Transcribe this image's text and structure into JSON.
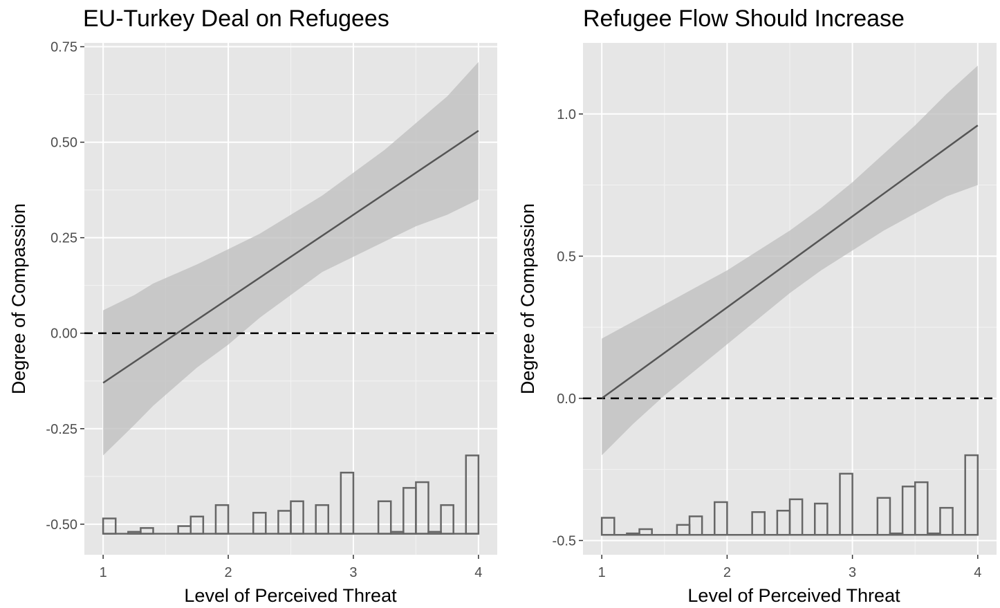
{
  "chart_data": [
    {
      "type": "line",
      "title": "EU-Turkey Deal on Refugees",
      "xlabel": "Level of Perceived Threat",
      "ylabel": "Degree of Compassion",
      "xlim": [
        0.85,
        4.15
      ],
      "ylim": [
        -0.58,
        0.76
      ],
      "x_ticks": [
        1,
        2,
        3,
        4
      ],
      "x_tick_labels": [
        "1",
        "2",
        "3",
        "4"
      ],
      "y_ticks": [
        -0.5,
        -0.25,
        0,
        0.25,
        0.5,
        0.75
      ],
      "y_tick_labels": [
        "-0.50",
        "-0.25",
        "0.00",
        "0.25",
        "0.50",
        "0.75"
      ],
      "reference_line": 0,
      "grid": true,
      "effect": {
        "x": [
          1,
          4
        ],
        "y": [
          -0.13,
          0.53
        ]
      },
      "confidence_band": {
        "x": [
          1,
          1.25,
          1.4,
          1.75,
          2,
          2.25,
          2.5,
          2.75,
          3,
          3.25,
          3.5,
          3.75,
          4
        ],
        "upper": [
          0.06,
          0.1,
          0.13,
          0.18,
          0.22,
          0.26,
          0.31,
          0.36,
          0.42,
          0.48,
          0.55,
          0.62,
          0.71
        ],
        "lower": [
          -0.32,
          -0.24,
          -0.19,
          -0.09,
          -0.03,
          0.04,
          0.1,
          0.16,
          0.2,
          0.24,
          0.28,
          0.31,
          0.35
        ]
      },
      "histogram": {
        "baseline": -0.525,
        "bins": [
          {
            "x": 1.05,
            "top": -0.485
          },
          {
            "x": 1.25,
            "top": -0.52
          },
          {
            "x": 1.35,
            "top": -0.51
          },
          {
            "x": 1.65,
            "top": -0.505
          },
          {
            "x": 1.75,
            "top": -0.48
          },
          {
            "x": 1.95,
            "top": -0.45
          },
          {
            "x": 2.25,
            "top": -0.47
          },
          {
            "x": 2.45,
            "top": -0.465
          },
          {
            "x": 2.55,
            "top": -0.44
          },
          {
            "x": 2.75,
            "top": -0.45
          },
          {
            "x": 2.95,
            "top": -0.365
          },
          {
            "x": 3.25,
            "top": -0.44
          },
          {
            "x": 3.35,
            "top": -0.52
          },
          {
            "x": 3.45,
            "top": -0.405
          },
          {
            "x": 3.55,
            "top": -0.39
          },
          {
            "x": 3.65,
            "top": -0.52
          },
          {
            "x": 3.75,
            "top": -0.45
          },
          {
            "x": 3.95,
            "top": -0.32
          }
        ]
      }
    },
    {
      "type": "line",
      "title": "Refugee Flow Should Increase",
      "xlabel": "Level of Perceived Threat",
      "ylabel": "Degree of Compassion",
      "xlim": [
        0.85,
        4.15
      ],
      "ylim": [
        -0.55,
        1.25
      ],
      "x_ticks": [
        1,
        2,
        3,
        4
      ],
      "x_tick_labels": [
        "1",
        "2",
        "3",
        "4"
      ],
      "y_ticks": [
        -0.5,
        0,
        0.5,
        1
      ],
      "y_tick_labels": [
        "-0.5",
        "0.0",
        "0.5",
        "1.0"
      ],
      "reference_line": 0,
      "grid": true,
      "effect": {
        "x": [
          1,
          4
        ],
        "y": [
          0,
          0.96
        ]
      },
      "confidence_band": {
        "x": [
          1,
          1.25,
          1.5,
          1.75,
          2,
          2.25,
          2.5,
          2.75,
          3,
          3.25,
          3.5,
          3.75,
          4
        ],
        "upper": [
          0.21,
          0.27,
          0.33,
          0.39,
          0.45,
          0.52,
          0.59,
          0.67,
          0.76,
          0.86,
          0.96,
          1.07,
          1.17
        ],
        "lower": [
          -0.2,
          -0.09,
          0.01,
          0.1,
          0.19,
          0.28,
          0.37,
          0.45,
          0.52,
          0.59,
          0.65,
          0.71,
          0.75
        ]
      },
      "histogram": {
        "baseline": -0.48,
        "bins": [
          {
            "x": 1.05,
            "top": -0.42
          },
          {
            "x": 1.25,
            "top": -0.475
          },
          {
            "x": 1.35,
            "top": -0.46
          },
          {
            "x": 1.65,
            "top": -0.445
          },
          {
            "x": 1.75,
            "top": -0.415
          },
          {
            "x": 1.95,
            "top": -0.365
          },
          {
            "x": 2.25,
            "top": -0.4
          },
          {
            "x": 2.45,
            "top": -0.395
          },
          {
            "x": 2.55,
            "top": -0.355
          },
          {
            "x": 2.75,
            "top": -0.37
          },
          {
            "x": 2.95,
            "top": -0.265
          },
          {
            "x": 3.25,
            "top": -0.35
          },
          {
            "x": 3.35,
            "top": -0.475
          },
          {
            "x": 3.45,
            "top": -0.31
          },
          {
            "x": 3.55,
            "top": -0.295
          },
          {
            "x": 3.65,
            "top": -0.475
          },
          {
            "x": 3.75,
            "top": -0.385
          },
          {
            "x": 3.95,
            "top": -0.2
          }
        ]
      }
    }
  ]
}
